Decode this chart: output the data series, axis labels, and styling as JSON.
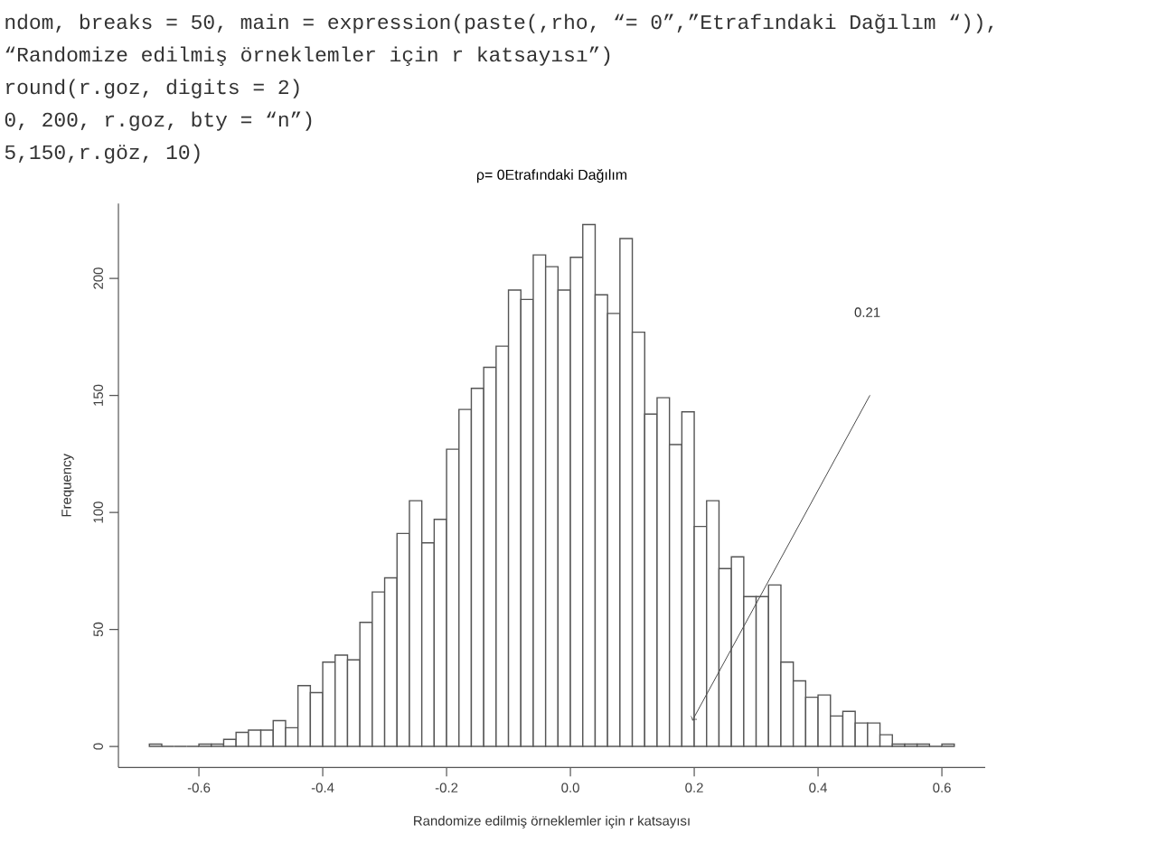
{
  "chart_data": {
    "type": "histogram",
    "title": "ρ= 0Etrafındaki Dağılım",
    "xlabel": "Randomize edilmiş örneklemler için r katsayısı",
    "ylabel": "Frequency",
    "color": "#555555",
    "bins": [
      -0.68,
      -0.66,
      -0.64,
      -0.62,
      -0.6,
      -0.58,
      -0.56,
      -0.54,
      -0.52,
      -0.5,
      -0.48,
      -0.46,
      -0.44,
      -0.42,
      -0.4,
      -0.38,
      -0.36,
      -0.34,
      -0.32,
      -0.3,
      -0.28,
      -0.26,
      -0.24,
      -0.22,
      -0.2,
      -0.18,
      -0.16,
      -0.14,
      -0.12,
      -0.1,
      -0.08,
      -0.06,
      -0.04,
      -0.02,
      0,
      0.02,
      0.04,
      0.06,
      0.08,
      0.1,
      0.12,
      0.14,
      0.16,
      0.18,
      0.2,
      0.22,
      0.24,
      0.26,
      0.28,
      0.3,
      0.32,
      0.34,
      0.36,
      0.38,
      0.4,
      0.42,
      0.44,
      0.46,
      0.48,
      0.5,
      0.52,
      0.54,
      0.56,
      0.58,
      0.6,
      0.62
    ],
    "values": [
      1,
      0,
      0,
      0,
      1,
      1,
      3,
      6,
      7,
      7,
      11,
      8,
      26,
      23,
      36,
      39,
      37,
      53,
      66,
      72,
      91,
      105,
      87,
      97,
      127,
      144,
      153,
      162,
      171,
      195,
      191,
      210,
      205,
      195,
      209,
      223,
      193,
      185,
      217,
      177,
      142,
      149,
      129,
      143,
      94,
      105,
      76,
      81,
      64,
      64,
      69,
      36,
      28,
      21,
      22,
      13,
      15,
      10,
      10,
      5,
      1,
      1,
      1,
      0,
      1
    ],
    "xlim": [
      -0.73,
      0.67
    ],
    "ylim": [
      -9,
      232
    ],
    "xticks": [
      -0.6,
      -0.4,
      -0.2,
      {
        "value": 0,
        "label": "0.0"
      },
      0.2,
      0.4,
      0.6
    ],
    "yticks": [
      0,
      50,
      100,
      150,
      200
    ],
    "annotations": [
      "ndom, breaks = 50, main =  expression(paste(,rho, “= 0”,”Etrafındaki Dağılım “)),",
      "“Randomize edilmiş örneklemler için r katsayısı”)",
      "round(r.goz, digits = 2)",
      "0, 200, r.goz, bty = “n”)",
      "5,150,r.göz, 10)",
      "0.21"
    ]
  }
}
